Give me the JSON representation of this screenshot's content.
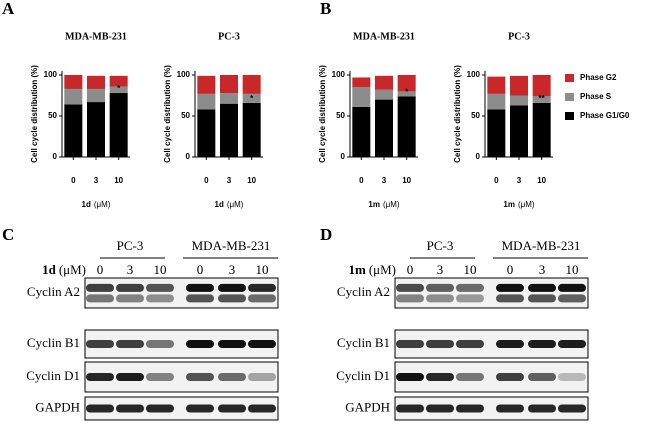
{
  "panels": [
    "A",
    "B",
    "C",
    "D"
  ],
  "chart_data": [
    {
      "type": "bar",
      "stacked": true,
      "title": "MDA-MB-231",
      "ylabel": "Cell cycle distribution (%)",
      "xlabel_compound": "1d",
      "xlabel_unit": "(μM)",
      "categories": [
        "0",
        "3",
        "10"
      ],
      "ylim": [
        0,
        105
      ],
      "yticks": [
        0,
        50,
        100
      ],
      "series": [
        {
          "color": "#000000",
          "values": [
            64,
            67,
            78
          ]
        },
        {
          "color": "#8c8c8c",
          "values": [
            19,
            16,
            8
          ]
        },
        {
          "color": "#c8282a",
          "values": [
            17,
            16,
            13
          ]
        }
      ],
      "annotations": [
        {
          "category": "10",
          "text": "*"
        }
      ]
    },
    {
      "type": "bar",
      "stacked": true,
      "title": "PC-3",
      "ylabel": "Cell cycle distribution (%)",
      "xlabel_compound": "1d",
      "xlabel_unit": "(μM)",
      "categories": [
        "0",
        "3",
        "10"
      ],
      "ylim": [
        0,
        105
      ],
      "yticks": [
        0,
        50,
        100
      ],
      "series": [
        {
          "color": "#000000",
          "values": [
            58,
            65,
            66
          ]
        },
        {
          "color": "#8c8c8c",
          "values": [
            19,
            13,
            11
          ]
        },
        {
          "color": "#c8282a",
          "values": [
            22,
            22,
            23
          ]
        }
      ],
      "annotations": [
        {
          "category": "10",
          "text": "*"
        }
      ]
    },
    {
      "type": "bar",
      "stacked": true,
      "title": "MDA-MB-231",
      "ylabel": "Cell cycle distribution (%)",
      "xlabel_compound": "1m",
      "xlabel_unit": "(μM)",
      "categories": [
        "0",
        "3",
        "10"
      ],
      "ylim": [
        0,
        105
      ],
      "yticks": [
        0,
        50,
        100
      ],
      "series": [
        {
          "color": "#000000",
          "values": [
            61,
            70,
            74
          ]
        },
        {
          "color": "#8c8c8c",
          "values": [
            24,
            12,
            6
          ]
        },
        {
          "color": "#c8282a",
          "values": [
            12,
            17,
            20
          ]
        }
      ],
      "annotations": [
        {
          "category": "10",
          "text": "*"
        }
      ]
    },
    {
      "type": "bar",
      "stacked": true,
      "title": "PC-3",
      "ylabel": "Cell cycle distribution (%)",
      "xlabel_compound": "1m",
      "xlabel_unit": "(μM)",
      "categories": [
        "0",
        "3",
        "10"
      ],
      "ylim": [
        0,
        105
      ],
      "yticks": [
        0,
        50,
        100
      ],
      "legend": "right",
      "series": [
        {
          "name": "Phase G1/G0",
          "color": "#000000",
          "values": [
            58,
            63,
            66
          ]
        },
        {
          "name": "Phase S",
          "color": "#8c8c8c",
          "values": [
            19,
            12,
            8
          ]
        },
        {
          "name": "Phase G2",
          "color": "#c8282a",
          "values": [
            21,
            24,
            26
          ]
        }
      ],
      "annotations": [
        {
          "category": "10",
          "text": "**"
        }
      ]
    }
  ],
  "blots": [
    {
      "groups": [
        "PC-3",
        "MDA-MB-231"
      ],
      "compound": "1d",
      "unit": "(μM)",
      "doses": [
        "0",
        "3",
        "10",
        "0",
        "3",
        "10"
      ],
      "rows": [
        "Cyclin A2",
        "Cyclin B1",
        "Cyclin D1",
        "GAPDH"
      ]
    },
    {
      "groups": [
        "PC-3",
        "MDA-MB-231"
      ],
      "compound": "1m",
      "unit": "(μM)",
      "doses": [
        "0",
        "3",
        "10",
        "0",
        "3",
        "10"
      ],
      "rows": [
        "Cyclin A2",
        "Cyclin B1",
        "Cyclin D1",
        "GAPDH"
      ]
    }
  ]
}
